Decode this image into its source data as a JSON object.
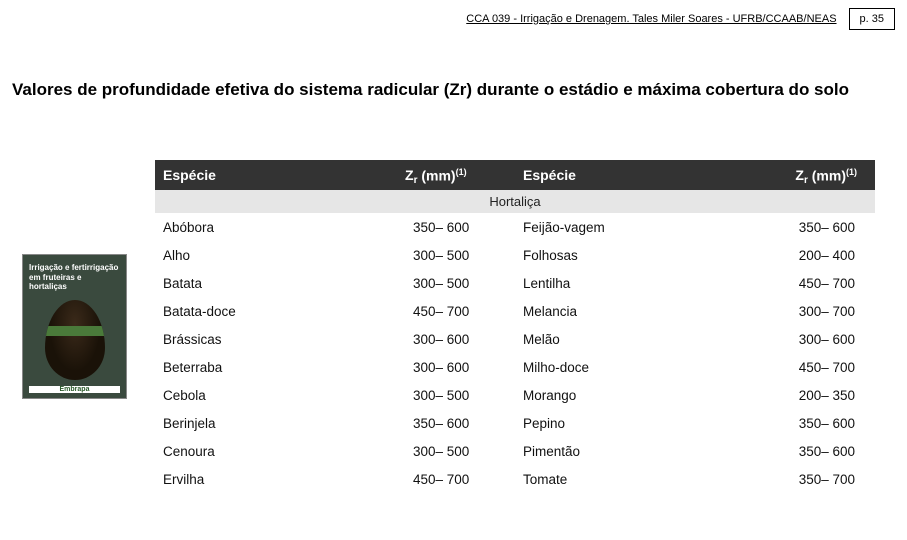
{
  "header": {
    "course": "CCA 039 - Irrigação e Drenagem. Tales Miler Soares - UFRB/CCAAB/NEAS",
    "page": "p. 35"
  },
  "section_title": "Valores de profundidade efetiva do sistema radicular (Zr) durante o estádio e máxima cobertura do solo",
  "book": {
    "title": "Irrigação e fertirrigação em fruteiras e hortaliças",
    "publisher": "Embrapa"
  },
  "table": {
    "headers": {
      "col1": "Espécie",
      "col2_main": "Z",
      "col2_sub": "r",
      "col2_unit": " (mm)",
      "col2_sup": "(1)",
      "col3": "Espécie",
      "col4_main": "Z",
      "col4_sub": "r",
      "col4_unit": " (mm)",
      "col4_sup": "(1)"
    },
    "category": "Hortaliça",
    "rows": [
      {
        "s1": "Abóbora",
        "z1": "350– 600",
        "s2": "Feijão-vagem",
        "z2": "350– 600"
      },
      {
        "s1": "Alho",
        "z1": "300– 500",
        "s2": "Folhosas",
        "z2": "200– 400"
      },
      {
        "s1": "Batata",
        "z1": "300– 500",
        "s2": "Lentilha",
        "z2": "450– 700"
      },
      {
        "s1": "Batata-doce",
        "z1": "450– 700",
        "s2": "Melancia",
        "z2": "300– 700"
      },
      {
        "s1": "Brássicas",
        "z1": "300– 600",
        "s2": "Melão",
        "z2": "300– 600"
      },
      {
        "s1": "Beterraba",
        "z1": "300– 600",
        "s2": "Milho-doce",
        "z2": "450– 700"
      },
      {
        "s1": "Cebola",
        "z1": "300– 500",
        "s2": "Morango",
        "z2": "200– 350"
      },
      {
        "s1": "Berinjela",
        "z1": "350– 600",
        "s2": "Pepino",
        "z2": "350– 600"
      },
      {
        "s1": "Cenoura",
        "z1": "300– 500",
        "s2": "Pimentão",
        "z2": "350– 600"
      },
      {
        "s1": "Ervilha",
        "z1": "450– 700",
        "s2": "Tomate",
        "z2": "350– 700"
      }
    ]
  }
}
